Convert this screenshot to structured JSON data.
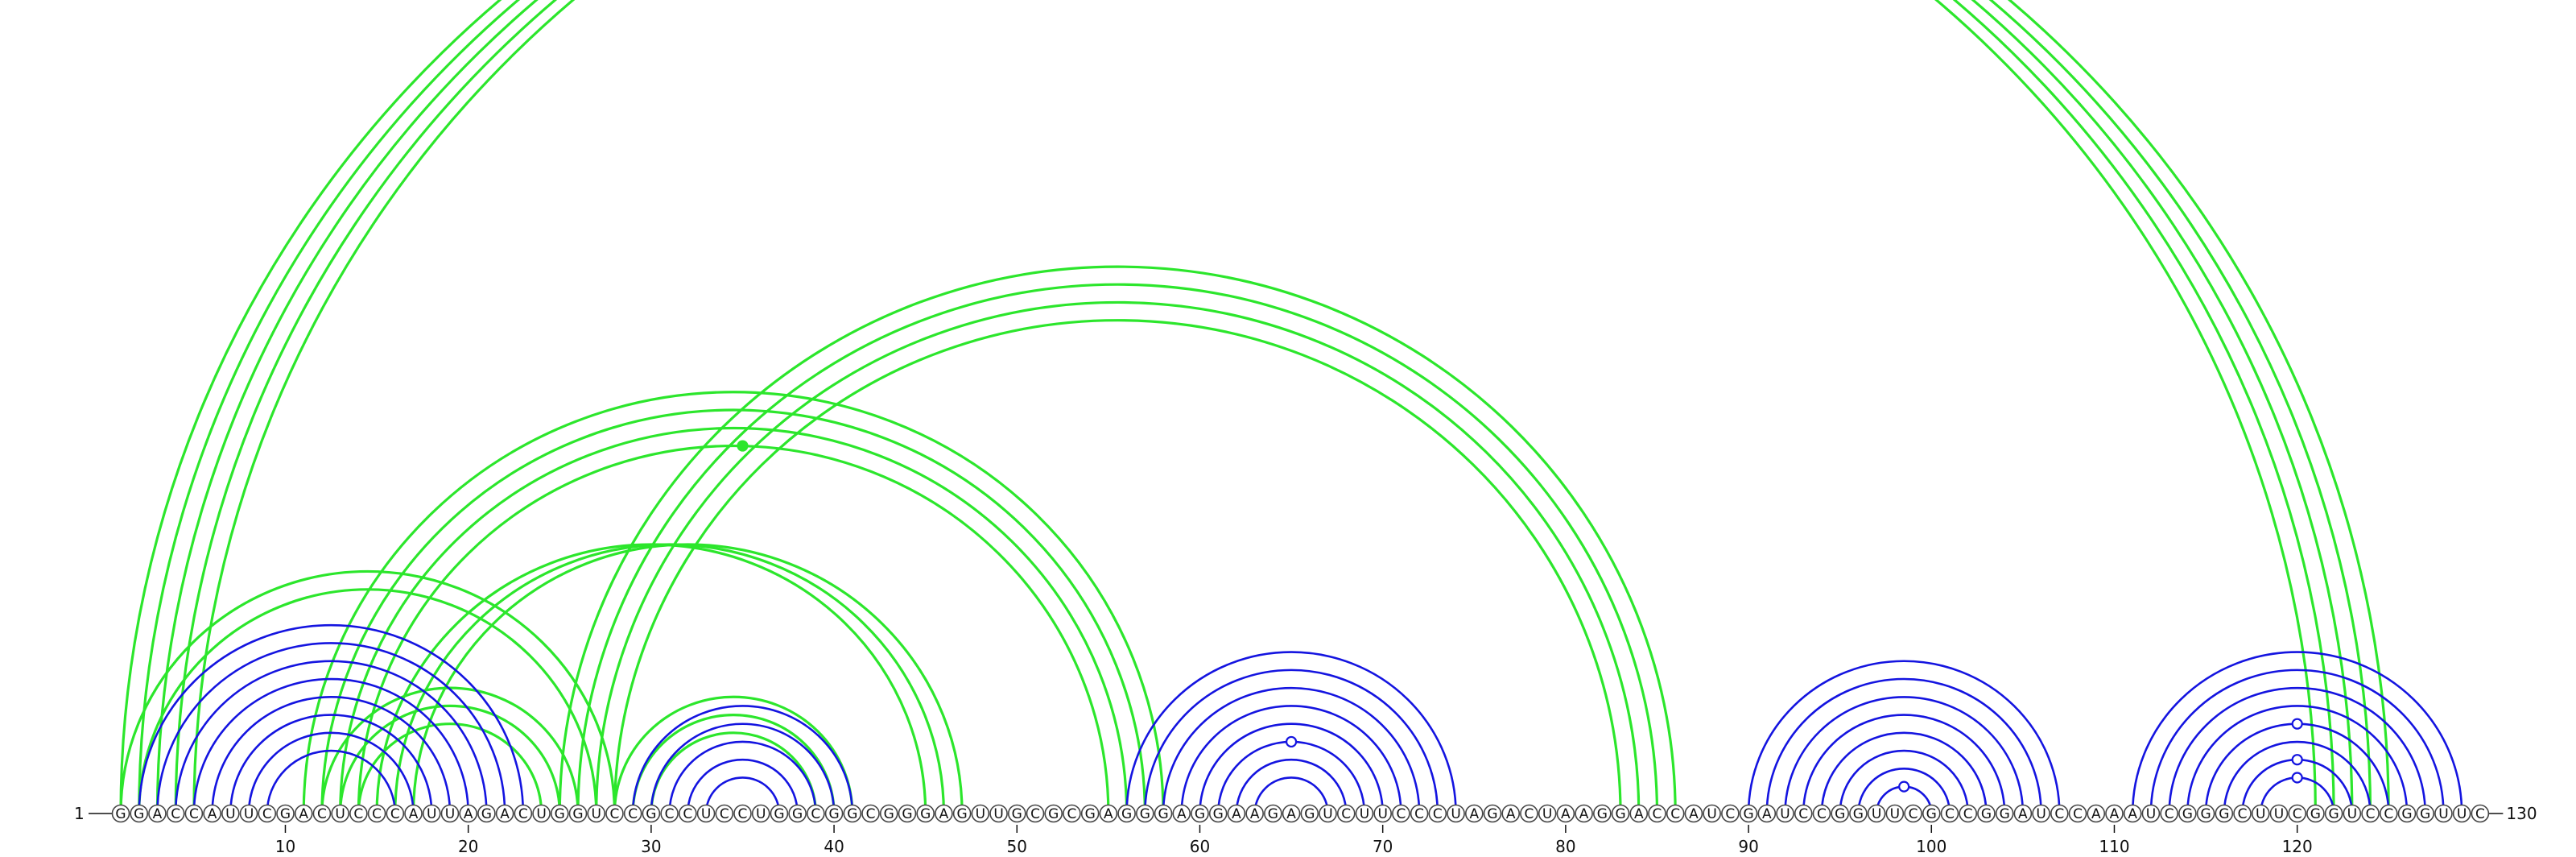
{
  "sequence": "GGACCAUUCGACUCCCAUUAGACUGGUCCGCCUCCUGGCGGCGGGAGUUGCGCGAGGGAGGAAGAGUCUUCCCUAGACUAAGGACCAUCGAUCCGGUUCGCCGGAUCCAAAUCGGGCUUCGGUCCGGUUC",
  "start_label": "1",
  "end_label": "130",
  "tick_positions": [
    10,
    20,
    30,
    40,
    50,
    60,
    70,
    80,
    90,
    100,
    110,
    120
  ],
  "colors": {
    "green": "#2ce62c",
    "blue": "#1414e0",
    "text": "#111111",
    "circle_stroke": "#444444"
  },
  "arc_groups": [
    {
      "color": "green",
      "pairs": [
        [
          1,
          121
        ],
        [
          2,
          122
        ],
        [
          3,
          123
        ],
        [
          4,
          124
        ],
        [
          5,
          125
        ]
      ]
    },
    {
      "color": "green",
      "pairs": [
        [
          11,
          58
        ],
        [
          12,
          57
        ],
        [
          13,
          56
        ],
        [
          14,
          55
        ]
      ]
    },
    {
      "color": "green",
      "pairs": [
        [
          25,
          86
        ],
        [
          26,
          85
        ],
        [
          27,
          84
        ],
        [
          28,
          83
        ]
      ]
    },
    {
      "color": "green",
      "pairs": [
        [
          15,
          45
        ],
        [
          16,
          46
        ],
        [
          17,
          47
        ]
      ]
    },
    {
      "color": "green",
      "pairs": [
        [
          1,
          28
        ],
        [
          2,
          27
        ],
        [
          12,
          26
        ],
        [
          13,
          25
        ],
        [
          14,
          24
        ]
      ]
    },
    {
      "color": "green",
      "pairs": [
        [
          28,
          41
        ],
        [
          29,
          40
        ],
        [
          30,
          39
        ]
      ]
    },
    {
      "color": "blue",
      "pairs": [
        [
          2,
          23
        ],
        [
          3,
          22
        ],
        [
          4,
          21
        ],
        [
          5,
          20
        ],
        [
          6,
          19
        ],
        [
          7,
          18
        ],
        [
          8,
          17
        ],
        [
          9,
          16
        ]
      ]
    },
    {
      "color": "blue",
      "pairs": [
        [
          29,
          41
        ],
        [
          30,
          40
        ],
        [
          31,
          39
        ],
        [
          32,
          38
        ],
        [
          33,
          37
        ]
      ]
    },
    {
      "color": "blue",
      "pairs": [
        [
          56,
          74
        ],
        [
          57,
          73
        ],
        [
          58,
          72
        ],
        [
          59,
          71
        ],
        [
          60,
          70
        ],
        [
          61,
          69
        ],
        [
          62,
          68
        ],
        [
          63,
          67
        ]
      ]
    },
    {
      "color": "blue",
      "pairs": [
        [
          90,
          107
        ],
        [
          91,
          106
        ],
        [
          92,
          105
        ],
        [
          93,
          104
        ],
        [
          94,
          103
        ],
        [
          95,
          102
        ],
        [
          96,
          101
        ],
        [
          97,
          100
        ]
      ]
    },
    {
      "color": "blue",
      "pairs": [
        [
          111,
          129
        ],
        [
          112,
          128
        ],
        [
          113,
          127
        ],
        [
          114,
          126
        ],
        [
          115,
          125
        ],
        [
          116,
          124
        ],
        [
          117,
          123
        ],
        [
          118,
          122
        ]
      ]
    }
  ],
  "markers": [
    {
      "position": 35,
      "level": 0,
      "color": "green",
      "filled": true
    },
    {
      "position": 65,
      "level": 2,
      "color": "blue",
      "filled": false
    },
    {
      "position": 98.5,
      "level": 0,
      "color": "blue",
      "filled": false
    },
    {
      "position": 120,
      "level": 0,
      "color": "blue",
      "filled": false
    },
    {
      "position": 120,
      "level": 1,
      "color": "blue",
      "filled": false
    },
    {
      "position": 120,
      "level": 3,
      "color": "blue",
      "filled": false
    }
  ]
}
